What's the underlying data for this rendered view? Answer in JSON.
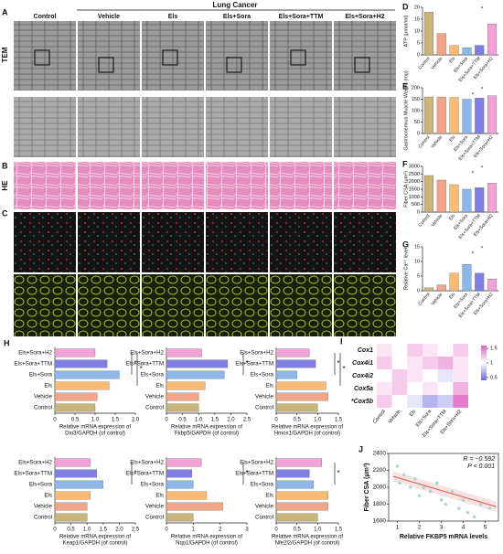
{
  "figure": {
    "group_label": "Lung Cancer",
    "columns": [
      "Control",
      "Vehicle",
      "Els",
      "Els+Sora",
      "Els+Sora+TTM",
      "Els+Sora+H2"
    ],
    "rows": [
      "TEM",
      "HE"
    ],
    "panel_letters": [
      "A",
      "B",
      "C"
    ]
  },
  "chart_data": [
    {
      "type": "bar",
      "panel": "D",
      "y_label": "ATP (μmol/ml)",
      "categories": [
        "Control",
        "Vehicle",
        "Els",
        "Els+Sora",
        "Els+Sora+TTM",
        "Els+Sora+H2"
      ],
      "values": [
        18,
        9,
        4,
        3,
        4,
        13
      ],
      "colors": [
        "#c9b47c",
        "#f4a487",
        "#f7bc72",
        "#8db6ea",
        "#7f7fe3",
        "#f1a2d6"
      ],
      "ylim": [
        0,
        20
      ],
      "yticks": [
        0,
        5,
        10,
        15,
        20
      ],
      "annotations": [
        "*"
      ]
    },
    {
      "type": "bar",
      "panel": "E",
      "y_label": "Gastrocnemius Muscle Weight (mg)",
      "categories": [
        "Control",
        "Vehicle",
        "Els",
        "Els+Sora",
        "Els+Sora+TTM",
        "Els+Sora+H2"
      ],
      "values": [
        160,
        160,
        158,
        150,
        155,
        165
      ],
      "colors": [
        "#c9b47c",
        "#f4a487",
        "#f7bc72",
        "#8db6ea",
        "#7f7fe3",
        "#f1a2d6"
      ],
      "ylim": [
        0,
        200
      ],
      "yticks": [
        0,
        50,
        100,
        150,
        200
      ],
      "annotations": [
        "*",
        "*"
      ]
    },
    {
      "type": "bar",
      "panel": "F",
      "y_label": "Fiber CSA (μm²)",
      "categories": [
        "Control",
        "Vehicle",
        "Els",
        "Els+Sora",
        "Els+Sora+TTM",
        "Els+Sora+H2"
      ],
      "values": [
        2400,
        2100,
        1800,
        1500,
        1600,
        1900
      ],
      "colors": [
        "#c9b47c",
        "#f4a487",
        "#f7bc72",
        "#8db6ea",
        "#7f7fe3",
        "#f1a2d6"
      ],
      "ylim": [
        0,
        3000
      ],
      "yticks": [
        0,
        500,
        1000,
        1500,
        2000,
        2500,
        3000
      ],
      "annotations": [
        "*",
        "*"
      ]
    },
    {
      "type": "bar",
      "panel": "G",
      "y_label": "Relative Ca²⁺ level",
      "categories": [
        "Control",
        "Vehicle",
        "Els",
        "Els+Sora",
        "Els+Sora+TTM",
        "Els+Sora+H2"
      ],
      "values": [
        1,
        2,
        6,
        9,
        6,
        4
      ],
      "colors": [
        "#c9b47c",
        "#f4a487",
        "#f7bc72",
        "#8db6ea",
        "#7f7fe3",
        "#f1a2d6"
      ],
      "ylim": [
        0,
        15
      ],
      "yticks": [
        0,
        5,
        10,
        15
      ],
      "annotations": [
        "*",
        "*"
      ]
    },
    {
      "type": "hbar",
      "panel": "H",
      "x_label": [
        "Relative mRNA expression of",
        "Dio3/GAPDH (of control)"
      ],
      "categories": [
        "Els+Sora+H2",
        "Els+Sora+TTM",
        "Els+Sora",
        "Els",
        "Vehicle",
        "Control"
      ],
      "values": [
        1.0,
        1.3,
        1.6,
        1.35,
        1.05,
        1.0
      ],
      "colors": [
        "#f1a2d6",
        "#7f7fe3",
        "#8db6ea",
        "#f7bc72",
        "#f4a487",
        "#c9b47c"
      ],
      "xlim": [
        0,
        2
      ],
      "xticks": [
        0,
        0.5,
        {
          "value": 1,
          "label": "1.0"
        },
        1.5,
        {
          "value": 2,
          "label": "2.0"
        }
      ],
      "annotations": [
        "*",
        "*"
      ]
    },
    {
      "type": "hbar",
      "x_label": [
        "Relative mRNA expression of",
        "Fkbp5/GAPDH (of control)"
      ],
      "categories": [
        "Els+Sora+H2",
        "Els+Sora+TTM",
        "Els+Sora",
        "Els",
        "Vehicle",
        "Control"
      ],
      "values": [
        1.1,
        1.9,
        1.8,
        1.2,
        1.0,
        1.0
      ],
      "colors": [
        "#f1a2d6",
        "#7f7fe3",
        "#8db6ea",
        "#f7bc72",
        "#f4a487",
        "#c9b47c"
      ],
      "xlim": [
        0,
        2.5
      ],
      "xticks": [
        0,
        0.5,
        {
          "value": 1,
          "label": "1.0"
        },
        1.5,
        {
          "value": 2,
          "label": "2.0"
        },
        2.5
      ],
      "annotations": [
        "*"
      ]
    },
    {
      "type": "hbar",
      "x_label": [
        "Relative mRNA expression of",
        "Hmox1/GAPDH (of control)"
      ],
      "categories": [
        "Els+Sora+H2",
        "Els+Sora+TTM",
        "Els+Sora",
        "Els",
        "Vehicle",
        "Control"
      ],
      "values": [
        0.8,
        0.95,
        0.5,
        1.2,
        1.25,
        1.0
      ],
      "colors": [
        "#f1a2d6",
        "#7f7fe3",
        "#8db6ea",
        "#f7bc72",
        "#f4a487",
        "#c9b47c"
      ],
      "xlim": [
        0,
        1.5
      ],
      "xticks": [
        0,
        0.5,
        {
          "value": 1,
          "label": "1.0"
        },
        1.5
      ],
      "annotations": [
        "*",
        "*"
      ]
    },
    {
      "type": "hbar",
      "x_label": [
        "Relative mRNA expression of",
        "Keap1/GAPDH (of control)"
      ],
      "categories": [
        "Els+Sora+H2",
        "Els+Sora+TTM",
        "Els+Sora",
        "Els",
        "Vehicle",
        "Control"
      ],
      "values": [
        1.1,
        1.3,
        1.5,
        1.1,
        1.0,
        1.0
      ],
      "colors": [
        "#f1a2d6",
        "#7f7fe3",
        "#8db6ea",
        "#f7bc72",
        "#f4a487",
        "#c9b47c"
      ],
      "xlim": [
        0,
        2.5
      ],
      "xticks": [
        0,
        0.5,
        {
          "value": 1,
          "label": "1.0"
        },
        1.5,
        {
          "value": 2,
          "label": "2.0"
        },
        2.5
      ],
      "annotations": [
        "*"
      ]
    },
    {
      "type": "hbar",
      "x_label": [
        "Relative mRNA expression of",
        "Nqo1/GAPDH (of control)"
      ],
      "categories": [
        "Els+Sora+H2",
        "Els+Sora+TTM",
        "Els+Sora",
        "Els",
        "Vehicle",
        "Control"
      ],
      "values": [
        1.3,
        0.95,
        1.0,
        1.5,
        2.1,
        1.0
      ],
      "colors": [
        "#f1a2d6",
        "#7f7fe3",
        "#8db6ea",
        "#f7bc72",
        "#f4a487",
        "#c9b47c"
      ],
      "xlim": [
        0,
        3
      ],
      "xticks": [
        0,
        1,
        2,
        3
      ],
      "annotations": [
        "*"
      ]
    },
    {
      "type": "hbar",
      "x_label": [
        "Relative mRNA expression of",
        "Nfe2l2/GAPDH (of control)"
      ],
      "categories": [
        "Els+Sora+H2",
        "Els+Sora+TTM",
        "Els+Sora",
        "Els",
        "Vehicle",
        "Control"
      ],
      "values": [
        1.1,
        0.8,
        0.9,
        1.25,
        1.25,
        1.0
      ],
      "colors": [
        "#f1a2d6",
        "#7f7fe3",
        "#8db6ea",
        "#f7bc72",
        "#f4a487",
        "#c9b47c"
      ],
      "xlim": [
        0,
        1.5
      ],
      "xticks": [
        0,
        0.5,
        {
          "value": 1,
          "label": "1.0"
        },
        1.5
      ],
      "annotations": [
        "*"
      ]
    },
    {
      "type": "heatmap",
      "panel": "I",
      "rows": [
        "Cox1",
        "Cox4i1",
        "Cox4i2",
        "Cox5a",
        "*Cox5b"
      ],
      "columns": [
        "Control",
        "Vehicle",
        "Els",
        "Els+Sora",
        "Els+Sora+TTM",
        "Els+Sora+H2"
      ],
      "values": [
        [
          1.1,
          1.0,
          1.2,
          1.1,
          1.0,
          1.2
        ],
        [
          1.2,
          1.0,
          1.1,
          1.2,
          1.3,
          1.1
        ],
        [
          1.0,
          1.2,
          1.1,
          1.0,
          0.9,
          1.1
        ],
        [
          1.1,
          1.2,
          1.0,
          1.1,
          1.0,
          1.3
        ],
        [
          1.2,
          1.0,
          0.9,
          0.7,
          0.8,
          1.5
        ]
      ],
      "colorbar_lim": [
        0.4,
        1.6
      ],
      "colorbar_ticks": [
        0.5,
        1,
        1.5
      ]
    },
    {
      "type": "scatter",
      "panel": "J",
      "x_label": "Relative FKBP5 mRNA levels",
      "y_label": "Fiber CSA (μm²)",
      "x": [
        1.0,
        1.1,
        1.3,
        1.6,
        1.8,
        2.0,
        2.2,
        2.5,
        2.8,
        3.0,
        3.2,
        3.5,
        3.8,
        4.0,
        4.2,
        4.5,
        4.8,
        5.2
      ],
      "y": [
        2250,
        2050,
        2150,
        2000,
        2100,
        1900,
        2000,
        1950,
        2050,
        1850,
        1800,
        1950,
        1750,
        1850,
        1700,
        1650,
        1800,
        1750
      ],
      "color": "#9ecfd6",
      "fit": {
        "x": [
          0.8,
          5.5
        ],
        "y": [
          2130,
          1770
        ],
        "color": "#e0584a"
      },
      "xlim": [
        0.6,
        5.6
      ],
      "ylim": [
        1600,
        2400
      ],
      "xticks": [
        1,
        2,
        3,
        4,
        5
      ],
      "yticks": [
        1600,
        1800,
        2000,
        2200,
        2400
      ],
      "annotations": [
        "R = −0.592",
        "P < 0.001"
      ]
    }
  ]
}
